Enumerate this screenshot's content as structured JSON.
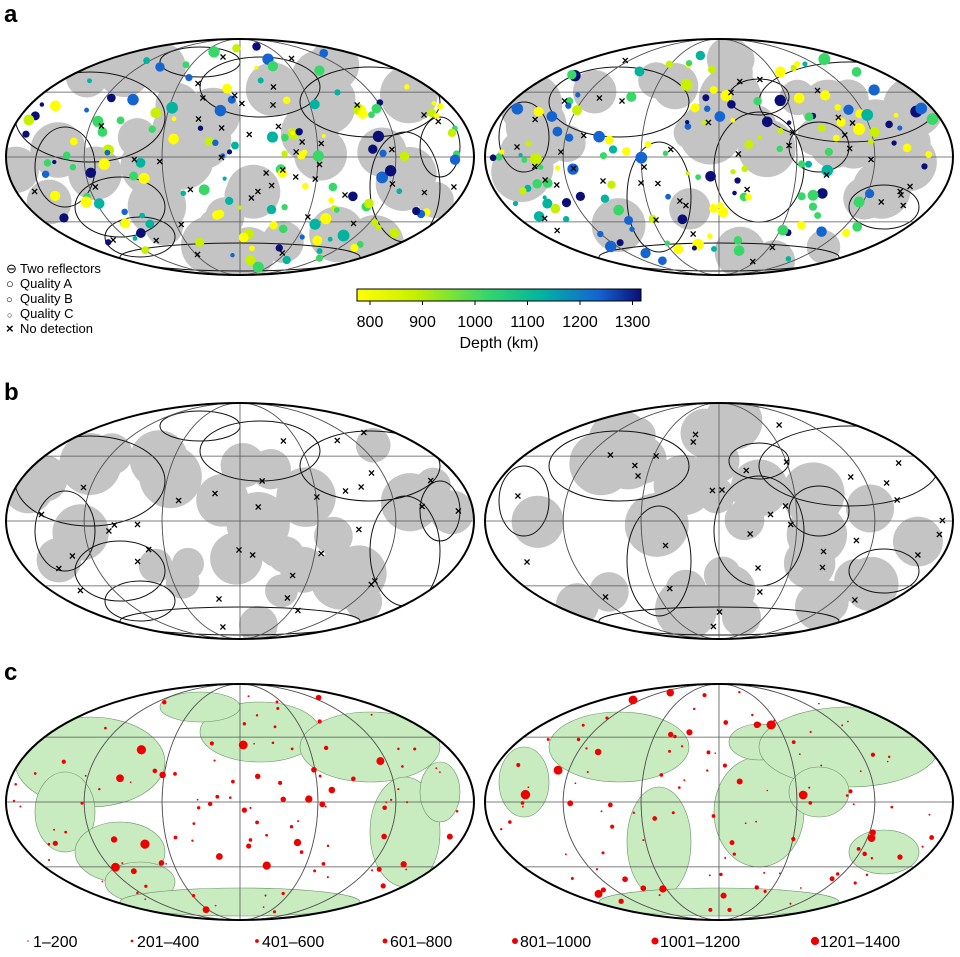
{
  "panels": [
    "a",
    "b",
    "c"
  ],
  "legend_symbols": [
    {
      "glyph": "⊖",
      "label": "Two reflectors"
    },
    {
      "glyph": "○",
      "label": "Quality A"
    },
    {
      "glyph": "○",
      "label": "Quality B"
    },
    {
      "glyph": "○",
      "label": "Quality C"
    },
    {
      "glyph": "×",
      "label": "No detection"
    }
  ],
  "colorbar": {
    "title": "Depth (km)",
    "ticks": [
      "800",
      "900",
      "1000",
      "1100",
      "1200",
      "1300"
    ],
    "colors": [
      "#ffff00",
      "#c8f000",
      "#38d868",
      "#00b4a0",
      "#1464d2",
      "#0a0f78"
    ]
  },
  "size_legend": [
    "1–200",
    "201–400",
    "401–600",
    "601–800",
    "801–1000",
    "1001–1200",
    "1201–1400"
  ],
  "colors": {
    "shade": "#c4c4c4",
    "land": "#c8ecc0",
    "coast": "#111111",
    "grid": "#555555",
    "red": "#ee0000"
  }
}
